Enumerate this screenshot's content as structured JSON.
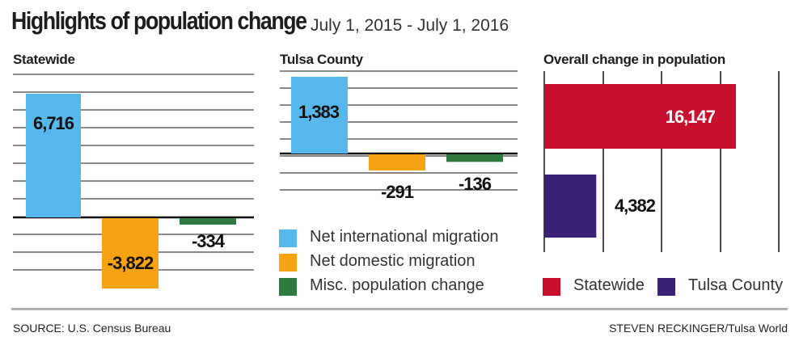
{
  "header": {
    "title": "Highlights of population change",
    "subtitle": "July 1, 2015 - July 1, 2016"
  },
  "colors": {
    "international": "#56b8ec",
    "domestic": "#f5a313",
    "misc": "#2f7a3e",
    "statewide": "#c8102e",
    "tulsa": "#3b2176"
  },
  "chart_data": [
    {
      "type": "bar",
      "title": "Statewide",
      "categories": [
        "Net international migration",
        "Net domestic migration",
        "Misc. population change"
      ],
      "values": [
        6716,
        -3822,
        -334
      ],
      "labels": [
        "6,716",
        "-3,822",
        "-334"
      ]
    },
    {
      "type": "bar",
      "title": "Tulsa County",
      "categories": [
        "Net international migration",
        "Net domestic migration",
        "Misc. population change"
      ],
      "values": [
        1383,
        -291,
        -136
      ],
      "labels": [
        "1,383",
        "-291",
        "-136"
      ]
    },
    {
      "type": "bar",
      "orientation": "horizontal",
      "title": "Overall change in population",
      "categories": [
        "Statewide",
        "Tulsa County"
      ],
      "values": [
        16147,
        4382
      ],
      "labels": [
        "16,147",
        "4,382"
      ]
    }
  ],
  "legend_left": {
    "items": [
      {
        "label": "Net international migration",
        "color": "#56b8ec"
      },
      {
        "label": "Net domestic migration",
        "color": "#f5a313"
      },
      {
        "label": "Misc. population change",
        "color": "#2f7a3e"
      }
    ]
  },
  "legend_right": {
    "items": [
      {
        "label": "Statewide",
        "color": "#c8102e"
      },
      {
        "label": "Tulsa County",
        "color": "#3b2176"
      }
    ]
  },
  "footer": {
    "source": "SOURCE: U.S. Census Bureau",
    "credit": "STEVEN RECKINGER/Tulsa World"
  }
}
